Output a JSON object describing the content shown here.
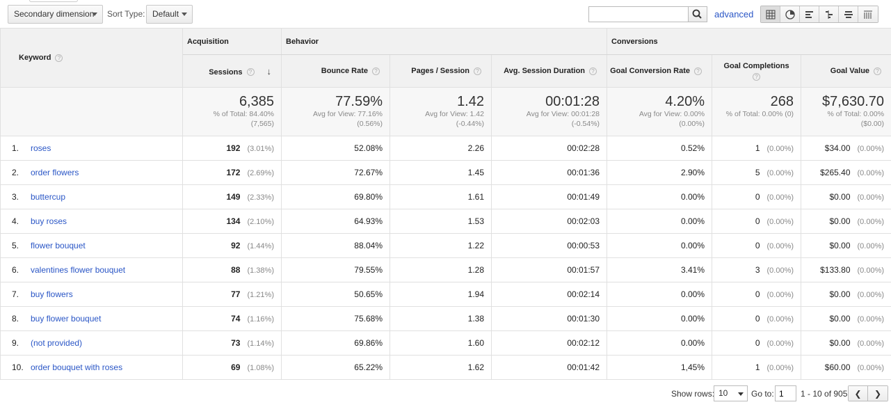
{
  "toolbar": {
    "secondary_dimension": "Secondary dimension",
    "sort_type_label": "Sort Type:",
    "sort_type_value": "Default",
    "search_placeholder": "",
    "advanced_label": "advanced",
    "view_icons": [
      "table-view-icon",
      "pie-view-icon",
      "performance-view-icon",
      "comparison-view-icon",
      "term-cloud-view-icon",
      "pivot-view-icon"
    ]
  },
  "header": {
    "groups": [
      "Acquisition",
      "Behavior",
      "Conversions"
    ],
    "keyword": "Keyword",
    "columns": [
      "Sessions",
      "Bounce Rate",
      "Pages / Session",
      "Avg. Session Duration",
      "Goal Conversion Rate",
      "Goal Completions",
      "Goal Value"
    ]
  },
  "totals": [
    {
      "value": "6,385",
      "sub1": "% of Total: 84.40%",
      "sub2": "(7,565)"
    },
    {
      "value": "77.59%",
      "sub1": "Avg for View: 77.16%",
      "sub2": "(0.56%)"
    },
    {
      "value": "1.42",
      "sub1": "Avg for View: 1.42",
      "sub2": "(-0.44%)"
    },
    {
      "value": "00:01:28",
      "sub1": "Avg for View: 00:01:28",
      "sub2": "(-0.54%)"
    },
    {
      "value": "4.20%",
      "sub1": "Avg for View: 0.00%",
      "sub2": "(0.00%)"
    },
    {
      "value": "268",
      "sub1": "% of Total: 0.00% (0)",
      "sub2": ""
    },
    {
      "value": "$7,630.70",
      "sub1": "% of Total: 0.00%",
      "sub2": "($0.00)"
    }
  ],
  "rows": [
    {
      "idx": "1.",
      "keyword": "roses",
      "sessions": "192",
      "sess_pct": "(3.01%)",
      "bounce": "52.08%",
      "pps": "2.26",
      "dur": "00:02:28",
      "gcr": "0.52%",
      "gc": "1",
      "gc_pct": "(0.00%)",
      "gv": "$34.00",
      "gv_pct": "(0.00%)"
    },
    {
      "idx": "2.",
      "keyword": "order flowers",
      "sessions": "172",
      "sess_pct": "(2.69%)",
      "bounce": "72.67%",
      "pps": "1.45",
      "dur": "00:01:36",
      "gcr": "2.90%",
      "gc": "5",
      "gc_pct": "(0.00%)",
      "gv": "$265.40",
      "gv_pct": "(0.00%)"
    },
    {
      "idx": "3.",
      "keyword": "buttercup",
      "sessions": "149",
      "sess_pct": "(2.33%)",
      "bounce": "69.80%",
      "pps": "1.61",
      "dur": "00:01:49",
      "gcr": "0.00%",
      "gc": "0",
      "gc_pct": "(0.00%)",
      "gv": "$0.00",
      "gv_pct": "(0.00%)"
    },
    {
      "idx": "4.",
      "keyword": "buy roses",
      "sessions": "134",
      "sess_pct": "(2.10%)",
      "bounce": "64.93%",
      "pps": "1.53",
      "dur": "00:02:03",
      "gcr": "0.00%",
      "gc": "0",
      "gc_pct": "(0.00%)",
      "gv": "$0.00",
      "gv_pct": "(0.00%)"
    },
    {
      "idx": "5.",
      "keyword": "flower bouquet",
      "sessions": "92",
      "sess_pct": "(1.44%)",
      "bounce": "88.04%",
      "pps": "1.22",
      "dur": "00:00:53",
      "gcr": "0.00%",
      "gc": "0",
      "gc_pct": "(0.00%)",
      "gv": "$0.00",
      "gv_pct": "(0.00%)"
    },
    {
      "idx": "6.",
      "keyword": "valentines flower bouquet",
      "sessions": "88",
      "sess_pct": "(1.38%)",
      "bounce": "79.55%",
      "pps": "1.28",
      "dur": "00:01:57",
      "gcr": "3.41%",
      "gc": "3",
      "gc_pct": "(0.00%)",
      "gv": "$133.80",
      "gv_pct": "(0.00%)"
    },
    {
      "idx": "7.",
      "keyword": "buy flowers",
      "sessions": "77",
      "sess_pct": "(1.21%)",
      "bounce": "50.65%",
      "pps": "1.94",
      "dur": "00:02:14",
      "gcr": "0.00%",
      "gc": "0",
      "gc_pct": "(0.00%)",
      "gv": "$0.00",
      "gv_pct": "(0.00%)"
    },
    {
      "idx": "8.",
      "keyword": "buy flower bouquet",
      "sessions": "74",
      "sess_pct": "(1.16%)",
      "bounce": "75.68%",
      "pps": "1.38",
      "dur": "00:01:30",
      "gcr": "0.00%",
      "gc": "0",
      "gc_pct": "(0.00%)",
      "gv": "$0.00",
      "gv_pct": "(0.00%)"
    },
    {
      "idx": "9.",
      "keyword": "(not provided)",
      "sessions": "73",
      "sess_pct": "(1.14%)",
      "bounce": "69.86%",
      "pps": "1.60",
      "dur": "00:02:12",
      "gcr": "0.00%",
      "gc": "0",
      "gc_pct": "(0.00%)",
      "gv": "$0.00",
      "gv_pct": "(0.00%)"
    },
    {
      "idx": "10.",
      "keyword": "order bouquet with roses",
      "sessions": "69",
      "sess_pct": "(1.08%)",
      "bounce": "65.22%",
      "pps": "1.62",
      "dur": "00:01:42",
      "gcr": "1,45%",
      "gc": "1",
      "gc_pct": "(0.00%)",
      "gv": "$60.00",
      "gv_pct": "(0.00%)"
    }
  ],
  "footer": {
    "show_rows_label": "Show rows:",
    "show_rows_value": "10",
    "goto_label": "Go to:",
    "goto_value": "1",
    "range": "1 - 10 of 905"
  },
  "colors": {
    "link": "#2a56c6",
    "header_bg": "#f1f1f1",
    "border": "#e0e0e0"
  }
}
